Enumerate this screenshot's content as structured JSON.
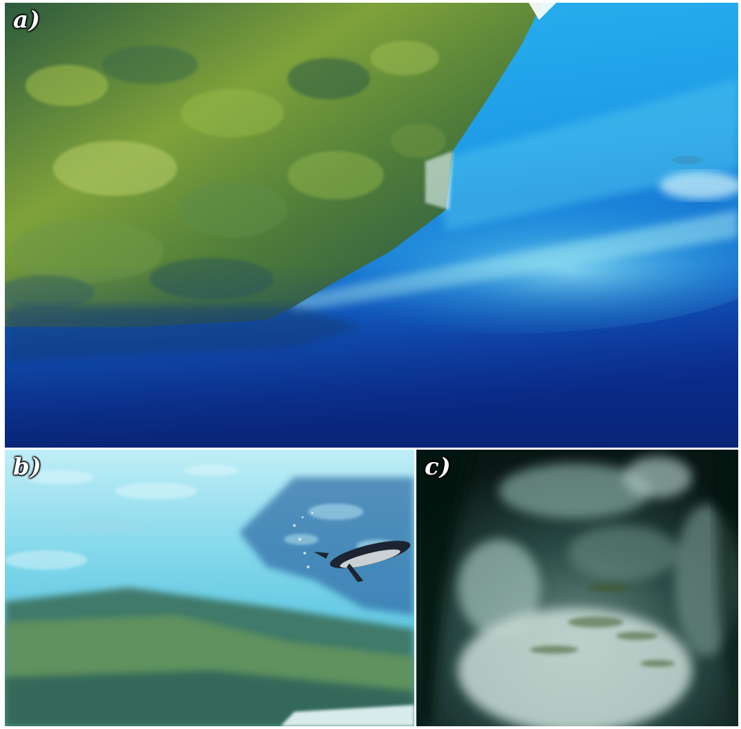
{
  "panels": [
    {
      "label": "a)",
      "scene": "ice-overhang-photo"
    },
    {
      "label": "b)",
      "scene": "penguin-under-ice-photo"
    },
    {
      "label": "c)",
      "scene": "ice-cave-photo"
    }
  ],
  "colors": {
    "deep_water": "#0b2a8a",
    "bright_water": "#1ea6e6",
    "ice_green": "#8cae3c",
    "ice_dark": "#1f4a3a",
    "cave_dark": "#0a1a18"
  }
}
